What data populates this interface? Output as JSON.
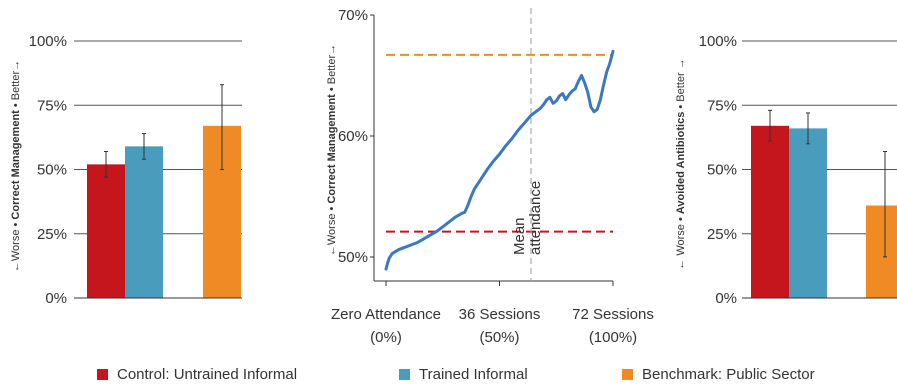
{
  "colors": {
    "control": "#c4161c",
    "trained": "#4a9cbc",
    "benchmark": "#f08a24",
    "line": "#3b78c3",
    "mean_line": "#aaaaaa"
  },
  "legend": [
    {
      "label": "Control: Untrained Informal",
      "color": "#c4161c"
    },
    {
      "label": "Trained Informal",
      "color": "#4a9cbc"
    },
    {
      "label": "Benchmark: Public Sector",
      "color": "#f08a24"
    }
  ],
  "chart_data": [
    {
      "type": "bar",
      "ylabel": {
        "worse": "←Worse",
        "measure": "Correct Management",
        "better": "Better→"
      },
      "ylim": [
        0,
        100
      ],
      "yticks": [
        "0%",
        "25%",
        "50%",
        "75%",
        "100%"
      ],
      "grid": true,
      "series": [
        {
          "name": "Control: Untrained Informal",
          "value": 52,
          "err_low": 47,
          "err_high": 57
        },
        {
          "name": "Trained Informal",
          "value": 59,
          "err_low": 54,
          "err_high": 64
        },
        {
          "name": "Benchmark: Public Sector",
          "value": 67,
          "err_low": 50,
          "err_high": 83
        }
      ]
    },
    {
      "type": "line",
      "ylabel": {
        "worse": "←Worse",
        "measure": "Correct Management",
        "better": "Better→"
      },
      "ylim": [
        50,
        70
      ],
      "yticks": [
        "50%",
        "60%",
        "70%"
      ],
      "xlim": [
        0,
        72
      ],
      "xticks": [
        {
          "line1": "Zero Attendance",
          "line2": "(0%)"
        },
        {
          "line1": "36 Sessions",
          "line2": "(50%)"
        },
        {
          "line1": "72  Sessions",
          "line2": "(100%)"
        }
      ],
      "mean_attendance": {
        "x": 46,
        "label_line1": "Mean",
        "label_line2": "attendance"
      },
      "reference_lines": [
        {
          "name": "Benchmark: Public Sector",
          "y": 66.7
        },
        {
          "name": "Control: Untrained Informal",
          "y": 52.1
        }
      ],
      "x": [
        0,
        0.5,
        1,
        2,
        4,
        6,
        8,
        10,
        12,
        14,
        16,
        18,
        20,
        22,
        24,
        25,
        26,
        27,
        28,
        30,
        32,
        34,
        36,
        38,
        40,
        42,
        44,
        46,
        48,
        49,
        50,
        51,
        52,
        53,
        54,
        55,
        56,
        57,
        58,
        59,
        60,
        61,
        62,
        63,
        64,
        65,
        66,
        67,
        68,
        69,
        70,
        71,
        72
      ],
      "y": [
        49.0,
        49.5,
        49.9,
        50.3,
        50.6,
        50.8,
        51.0,
        51.2,
        51.5,
        51.8,
        52.1,
        52.5,
        52.9,
        53.3,
        53.6,
        53.7,
        54.3,
        55.0,
        55.6,
        56.4,
        57.2,
        57.9,
        58.5,
        59.2,
        59.8,
        60.5,
        61.1,
        61.7,
        62.1,
        62.3,
        62.6,
        63.0,
        63.2,
        62.7,
        62.9,
        63.3,
        63.5,
        63.0,
        63.4,
        63.7,
        63.9,
        64.5,
        65.0,
        64.4,
        63.6,
        62.4,
        62.0,
        62.2,
        63.0,
        64.2,
        65.3,
        66.0,
        67.0
      ]
    },
    {
      "type": "bar",
      "ylabel": {
        "worse": "← Worse",
        "measure": "Avoided Antibiotics",
        "better": "Better →"
      },
      "ylim": [
        0,
        100
      ],
      "yticks": [
        "0%",
        "25%",
        "50%",
        "75%",
        "100%"
      ],
      "grid": true,
      "series": [
        {
          "name": "Control: Untrained Informal",
          "value": 67,
          "err_low": 61,
          "err_high": 73
        },
        {
          "name": "Trained Informal",
          "value": 66,
          "err_low": 60,
          "err_high": 72
        },
        {
          "name": "Benchmark: Public Sector",
          "value": 36,
          "err_low": 16,
          "err_high": 57
        }
      ]
    }
  ]
}
